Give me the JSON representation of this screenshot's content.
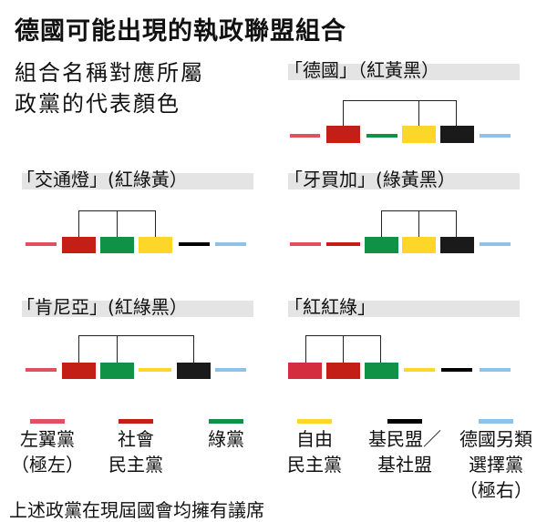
{
  "title": "德國可能出現的執政聯盟組合",
  "subtitle_line1": "組合名稱對應所屬",
  "subtitle_line2": "政黨的代表顏色",
  "colors": {
    "left": "#e25060",
    "spd": "#c41f17",
    "green": "#0f9245",
    "fdp": "#fcd628",
    "cdu": "#1a1a1a",
    "afd": "#8fc2e7",
    "spd_alt": "#d52d40"
  },
  "coalitions": [
    {
      "label": "「德國」（紅黃黑）"
    },
    {
      "label": "「交通燈」(紅綠黃）"
    },
    {
      "label": "「牙買加」(綠黃黑）"
    },
    {
      "label": "「肯尼亞」(紅綠黑）"
    },
    {
      "label": "「紅紅綠」"
    }
  ],
  "legend": [
    {
      "line1": "左翼黨",
      "line2": "（極左）",
      "color": "#e25060"
    },
    {
      "line1": "社會",
      "line2": "民主黨",
      "color": "#c41f17"
    },
    {
      "line1": "綠黨",
      "line2": "",
      "color": "#0f9245"
    },
    {
      "line1": "自由",
      "line2": "民主黨",
      "color": "#fcd628"
    },
    {
      "line1": "基民盟／",
      "line2": "基社盟",
      "color": "#000000"
    },
    {
      "line1": "德國另類",
      "line2": "選擇黨",
      "line3": "（極右）",
      "color": "#8fc2e7"
    }
  ],
  "footer": "上述政黨在現屆國會均擁有議席"
}
